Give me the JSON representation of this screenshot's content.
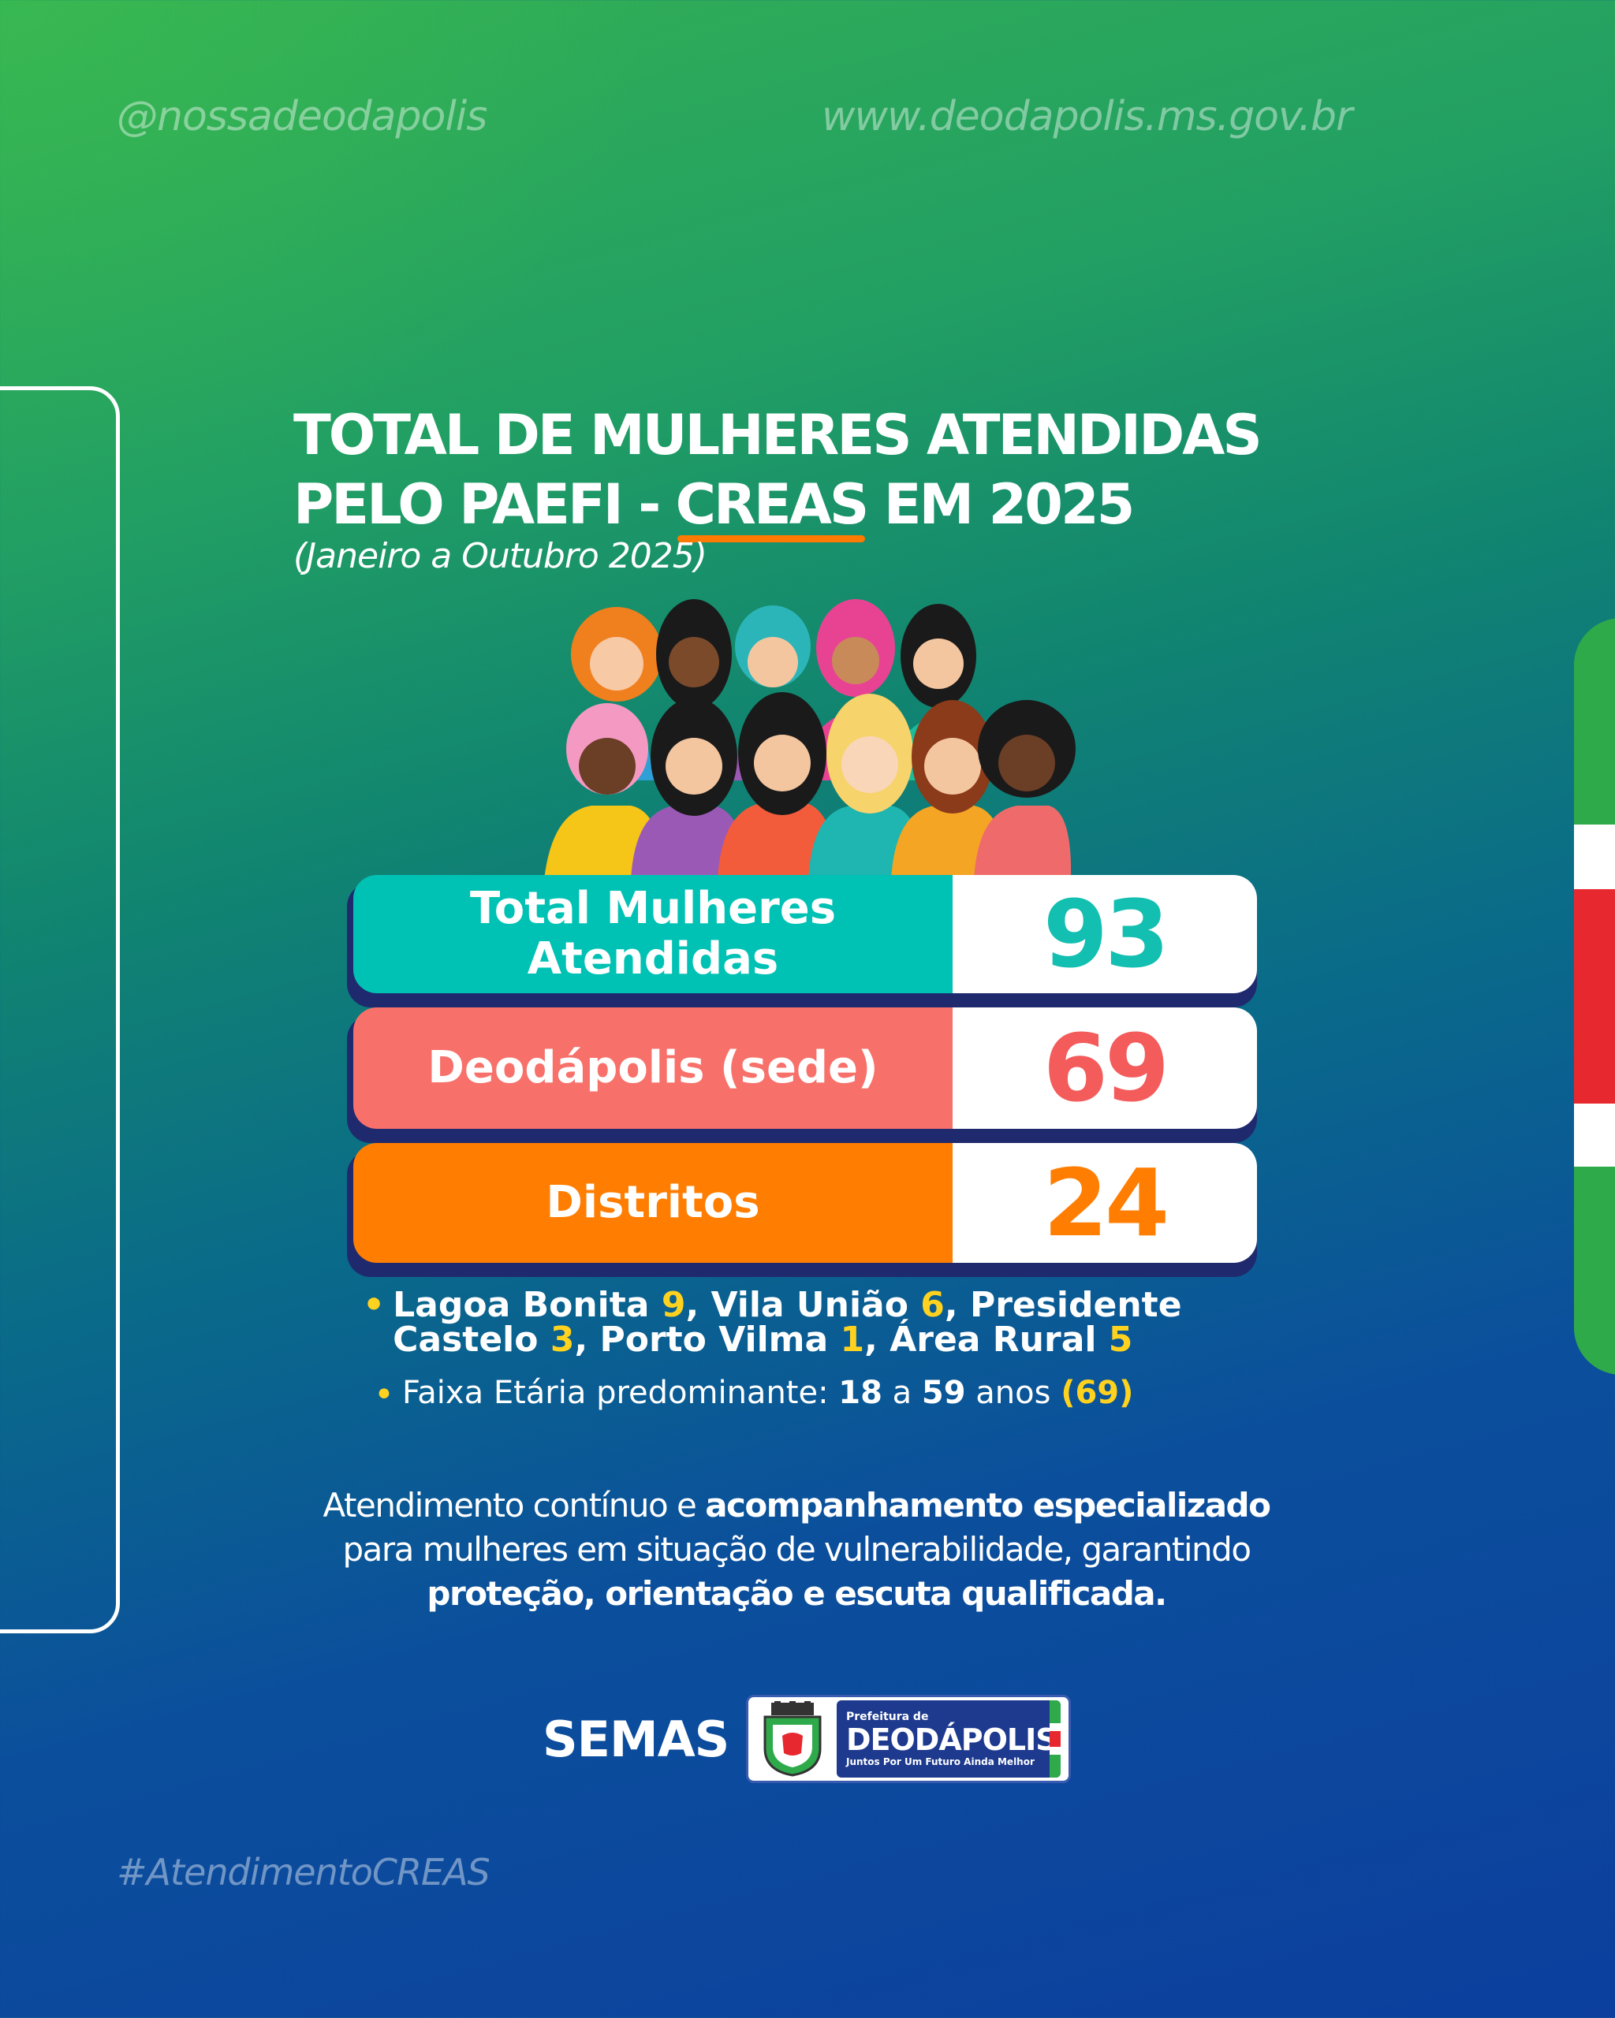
{
  "header": {
    "handle": "@nossadeodapolis",
    "website": "www.deodapolis.ms.gov.br"
  },
  "title": {
    "line1": "TOTAL DE MULHERES ATENDIDAS",
    "line2_prefix": "PELO PAEFI - ",
    "line2_highlight": "CREAS",
    "line2_suffix": " EM 2025",
    "period": "(Janeiro a Outubro 2025)"
  },
  "stats": [
    {
      "label_line1": "Total Mulheres",
      "label_line2": "Atendidas",
      "value": "93",
      "label_bg": "#00c2b4",
      "value_color": "#12bfb0"
    },
    {
      "label_line1": "Deodápolis (sede)",
      "label_line2": "",
      "value": "69",
      "label_bg": "#f8706a",
      "value_color": "#f45b5b"
    },
    {
      "label_line1": "Distritos",
      "label_line2": "",
      "value": "24",
      "label_bg": "#ff7d00",
      "value_color": "#ff7d00"
    }
  ],
  "districts": {
    "line1_a": "Lagoa Bonita ",
    "n1": "9",
    "line1_b": ", Vila União ",
    "n2": "6",
    "line1_c": ", Presidente",
    "line2_a": "Castelo ",
    "n3": "3",
    "line2_b": ", Porto Vilma ",
    "n4": "1",
    "line2_c": ", Área Rural ",
    "n5": "5"
  },
  "age": {
    "prefix": "Faixa Etária predominante: ",
    "min": "18",
    "mid": " a ",
    "max": "59",
    "suffix": " anos ",
    "count": "(69)"
  },
  "closing": {
    "p1": "Atendimento contínuo e ",
    "b1": "acompanhamento especializado",
    "p2": "para mulheres em situação de vulnerabilidade, garantindo",
    "b2": "proteção, orientação e escuta qualificada."
  },
  "footer": {
    "semas": "SEMAS",
    "prefeitura_small": "Prefeitura de",
    "prefeitura_name": "DEODÁPOLIS",
    "slogan": "Juntos Por Um Futuro Ainda Melhor",
    "hashtag": "#AtendimentoCREAS"
  },
  "colors": {
    "accent_orange": "#ff7a00",
    "highlight_yellow": "#ffd21f",
    "flag_green": "#2eaa4a",
    "flag_red": "#e8282f",
    "flag_white": "#ffffff"
  }
}
